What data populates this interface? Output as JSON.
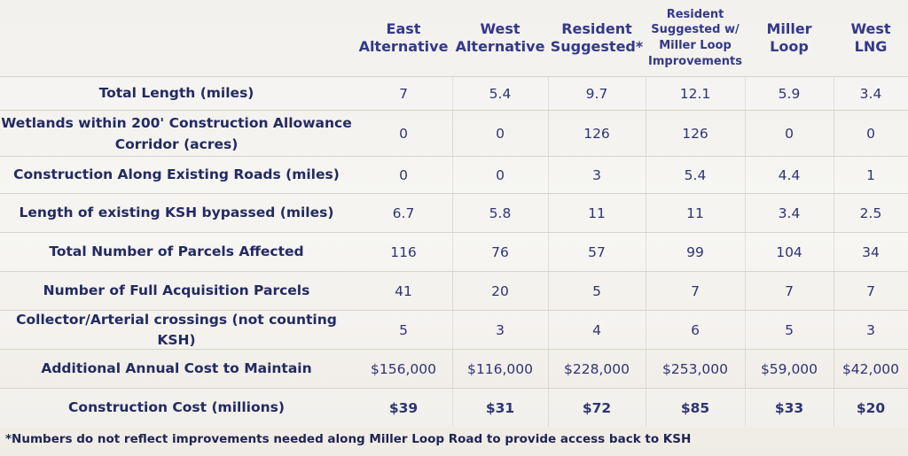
{
  "columns": [
    {
      "label": "East\nAlternative"
    },
    {
      "label": "West\nAlternative"
    },
    {
      "label": "Resident\nSuggested*"
    },
    {
      "label": "Resident\nSuggested w/\nMiller Loop\nImprovements"
    },
    {
      "label": "Miller\nLoop"
    },
    {
      "label": "West LNG"
    }
  ],
  "rows": [
    {
      "label": "Total Length (miles)",
      "values": [
        "7",
        "5.4",
        "9.7",
        "12.1",
        "5.9",
        "3.4"
      ]
    },
    {
      "label": "Wetlands within 200' Construction Allowance\nCorridor (acres)",
      "values": [
        "0",
        "0",
        "126",
        "126",
        "0",
        "0"
      ]
    },
    {
      "label": "Construction Along Existing Roads (miles)",
      "values": [
        "0",
        "0",
        "3",
        "5.4",
        "4.4",
        "1"
      ]
    },
    {
      "label": "Length of existing KSH bypassed (miles)",
      "values": [
        "6.7",
        "5.8",
        "11",
        "11",
        "3.4",
        "2.5"
      ]
    },
    {
      "label": "Total Number of Parcels Affected",
      "values": [
        "116",
        "76",
        "57",
        "99",
        "104",
        "34"
      ]
    },
    {
      "label": "Number of Full Acquisition Parcels",
      "values": [
        "41",
        "20",
        "5",
        "7",
        "7",
        "7"
      ]
    },
    {
      "label": "Collector/Arterial crossings (not counting KSH)",
      "values": [
        "5",
        "3",
        "4",
        "6",
        "5",
        "3"
      ]
    },
    {
      "label": "Additional Annual Cost to Maintain",
      "values": [
        "$156,000",
        "$116,000",
        "$228,000",
        "$253,000",
        "$59,000",
        "$42,000"
      ]
    },
    {
      "label": "Construction Cost (millions)",
      "values": [
        "$39",
        "$31",
        "$72",
        "$85",
        "$33",
        "$20"
      ]
    }
  ],
  "footnote": "*Numbers do not reflect improvements needed along Miller Loop Road to provide access back to KSH",
  "colors": {
    "text": "#2a2f6e",
    "header": "#34398a",
    "background": "#f3f1ee"
  }
}
